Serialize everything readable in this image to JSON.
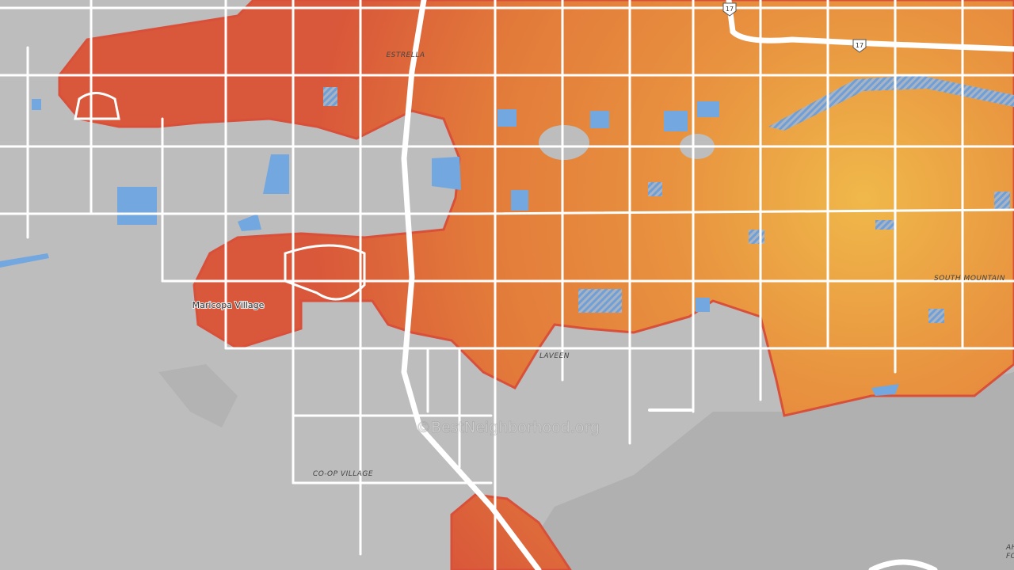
{
  "map": {
    "place_labels": [
      "ESTRELLA",
      "SOUTH MOUNTAIN",
      "Maricopa Village",
      "LAVEEN",
      "CO-OP VILLAGE",
      "AH",
      "FO"
    ],
    "highway_shields": [
      "17",
      "17"
    ],
    "watermark": "©BestNeighborhood.org"
  }
}
